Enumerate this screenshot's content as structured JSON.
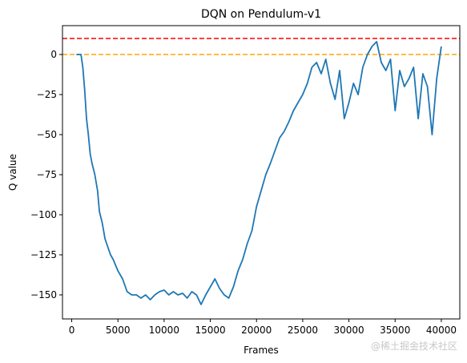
{
  "chart_data": {
    "type": "line",
    "title": "DQN on Pendulum-v1",
    "xlabel": "Frames",
    "ylabel": "Q value",
    "xlim": [
      -1000,
      42000
    ],
    "ylim": [
      -165,
      18
    ],
    "xticks": [
      0,
      5000,
      10000,
      15000,
      20000,
      25000,
      30000,
      35000,
      40000
    ],
    "yticks": [
      0,
      -25,
      -50,
      -75,
      -100,
      -125,
      -150
    ],
    "xtick_labels": [
      "0",
      "5000",
      "10000",
      "15000",
      "20000",
      "25000",
      "30000",
      "35000",
      "40000"
    ],
    "ytick_labels": [
      "0",
      "−25",
      "−50",
      "−75",
      "−100",
      "−125",
      "−150"
    ],
    "grid": false,
    "hlines": [
      {
        "y": 10,
        "color": "#ff0000",
        "style": "dashed"
      },
      {
        "y": 0,
        "color": "#ffa500",
        "style": "dashed"
      }
    ],
    "series": [
      {
        "color": "#1f77b4",
        "x": [
          500,
          800,
          1000,
          1200,
          1400,
          1600,
          1800,
          2000,
          2200,
          2500,
          2800,
          3000,
          3300,
          3600,
          3900,
          4200,
          4500,
          5000,
          5500,
          6000,
          6500,
          7000,
          7500,
          8000,
          8500,
          9000,
          9500,
          10000,
          10500,
          11000,
          11500,
          12000,
          12500,
          13000,
          13500,
          14000,
          14500,
          15000,
          15500,
          16000,
          16500,
          17000,
          17500,
          18000,
          18500,
          19000,
          19500,
          20000,
          20500,
          21000,
          21500,
          22000,
          22500,
          23000,
          23500,
          24000,
          24500,
          25000,
          25500,
          26000,
          26500,
          27000,
          27500,
          28000,
          28500,
          29000,
          29500,
          30000,
          30500,
          31000,
          31500,
          32000,
          32500,
          33000,
          33500,
          34000,
          34500,
          35000,
          35500,
          36000,
          36500,
          37000,
          37500,
          38000,
          38500,
          39000,
          39500,
          40000
        ],
        "y": [
          0,
          0,
          0,
          -8,
          -22,
          -40,
          -50,
          -62,
          -68,
          -75,
          -85,
          -98,
          -105,
          -115,
          -120,
          -125,
          -128,
          -135,
          -140,
          -148,
          -150,
          -150,
          -152,
          -150,
          -153,
          -150,
          -148,
          -147,
          -150,
          -148,
          -150,
          -149,
          -152,
          -148,
          -150,
          -156,
          -150,
          -145,
          -140,
          -146,
          -150,
          -152,
          -145,
          -135,
          -128,
          -118,
          -110,
          -95,
          -85,
          -75,
          -68,
          -60,
          -52,
          -48,
          -42,
          -35,
          -30,
          -25,
          -18,
          -8,
          -5,
          -12,
          -3,
          -18,
          -28,
          -10,
          -40,
          -30,
          -18,
          -25,
          -8,
          0,
          5,
          8,
          -5,
          -10,
          -3,
          -35,
          -10,
          -20,
          -15,
          -8,
          -40,
          -12,
          -20,
          -50,
          -15,
          5
        ]
      }
    ]
  },
  "watermark": "@稀土掘金技术社区"
}
